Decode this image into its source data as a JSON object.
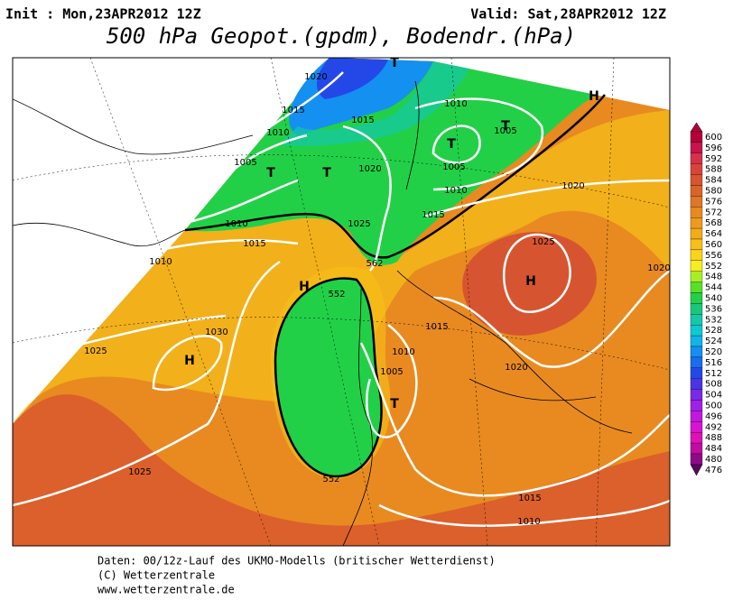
{
  "header": {
    "init": "Init : Mon,23APR2012 12Z",
    "valid": "Valid: Sat,28APR2012 12Z",
    "title": "500 hPa Geopot.(gpdm), Bodendr.(hPa)"
  },
  "map": {
    "labels": [
      "1020",
      "1015",
      "1010",
      "1005",
      "T",
      "T",
      "1015",
      "1020",
      "1025",
      "T",
      "1010",
      "T",
      "1005",
      "T",
      "1005",
      "1010",
      "1015",
      "1020",
      "H",
      "1010",
      "1015",
      "1010",
      "562",
      "H",
      "552",
      "1025",
      "H",
      "1020",
      "1025",
      "1030",
      "H",
      "1015",
      "1010",
      "1005",
      "T",
      "1020",
      "552",
      "1025",
      "1015",
      "1010"
    ]
  },
  "colorbar": {
    "labels": [
      "600",
      "596",
      "592",
      "588",
      "584",
      "580",
      "576",
      "572",
      "568",
      "564",
      "560",
      "556",
      "552",
      "548",
      "544",
      "540",
      "536",
      "532",
      "528",
      "524",
      "520",
      "516",
      "512",
      "508",
      "504",
      "500",
      "496",
      "492",
      "488",
      "484",
      "480",
      "476"
    ],
    "colors": [
      "#b5003a",
      "#c8144a",
      "#d8304a",
      "#d8443a",
      "#d65530",
      "#da6428",
      "#e07628",
      "#e88a20",
      "#ee9a1c",
      "#f2ac1a",
      "#f6c018",
      "#fad41a",
      "#f6ec20",
      "#a8ee28",
      "#58e028",
      "#22d048",
      "#18c878",
      "#14c8a8",
      "#10c8d0",
      "#10b4e8",
      "#1490f0",
      "#1a6cf0",
      "#2448e8",
      "#4a34e6",
      "#7a2ae6",
      "#a020e8",
      "#c018e0",
      "#d814d0",
      "#e010b8",
      "#c00ca0",
      "#900a88",
      "#5a0660"
    ]
  },
  "footer": {
    "line1": "Daten: 00/12z-Lauf des UKMO-Modells (britischer Wetterdienst)",
    "line2": "(C) Wetterzentrale",
    "line3": "www.wetterzentrale.de"
  }
}
